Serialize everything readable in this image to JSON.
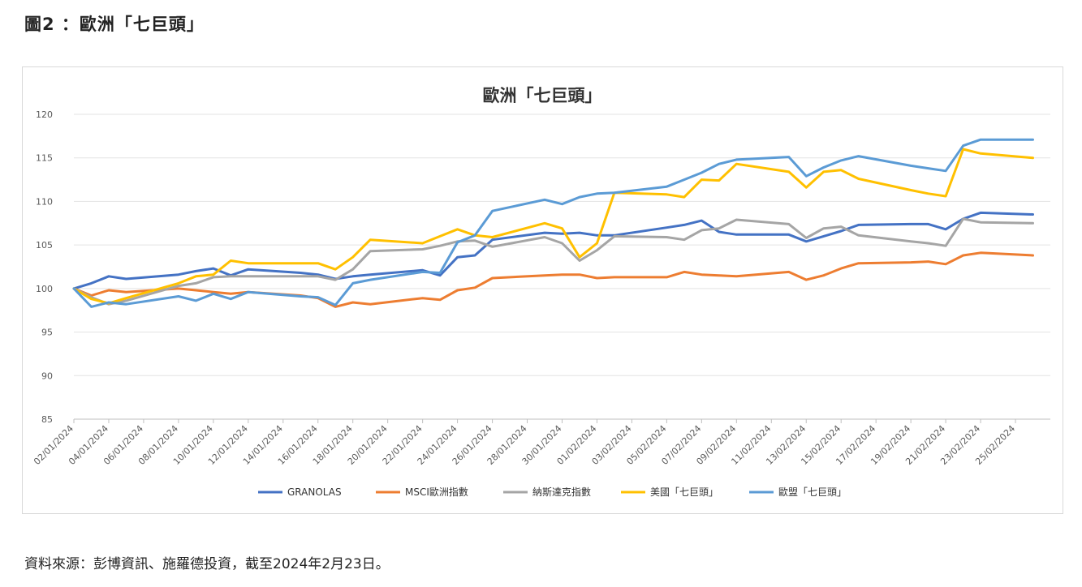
{
  "figure_title": "圖2 ：歐洲「七巨頭」",
  "source_note": "資料來源：彭博資訊、施羅德投資，截至2024年2月23日。",
  "chart_data": {
    "type": "line",
    "title": "歐洲「七巨頭」",
    "ylim": [
      85,
      120
    ],
    "yticks": [
      85,
      90,
      95,
      100,
      105,
      110,
      115,
      120
    ],
    "grid": "horizontal",
    "legend_position": "bottom",
    "x_labels": [
      "02/01/2024",
      "04/01/2024",
      "06/01/2024",
      "08/01/2024",
      "10/01/2024",
      "12/01/2024",
      "14/01/2024",
      "16/01/2024",
      "18/01/2024",
      "20/01/2024",
      "22/01/2024",
      "24/01/2024",
      "26/01/2024",
      "28/01/2024",
      "30/01/2024",
      "01/02/2024",
      "03/02/2024",
      "05/02/2024",
      "07/02/2024",
      "09/02/2024",
      "11/02/2024",
      "13/02/2024",
      "15/02/2024",
      "17/02/2024",
      "19/02/2024",
      "21/02/2024",
      "23/02/2024",
      "25/02/2024"
    ],
    "x": [
      "2024-01-02",
      "2024-01-03",
      "2024-01-04",
      "2024-01-05",
      "2024-01-08",
      "2024-01-09",
      "2024-01-10",
      "2024-01-11",
      "2024-01-12",
      "2024-01-15",
      "2024-01-16",
      "2024-01-17",
      "2024-01-18",
      "2024-01-19",
      "2024-01-22",
      "2024-01-23",
      "2024-01-24",
      "2024-01-25",
      "2024-01-26",
      "2024-01-29",
      "2024-01-30",
      "2024-01-31",
      "2024-02-01",
      "2024-02-02",
      "2024-02-05",
      "2024-02-06",
      "2024-02-07",
      "2024-02-08",
      "2024-02-09",
      "2024-02-12",
      "2024-02-13",
      "2024-02-14",
      "2024-02-15",
      "2024-02-16",
      "2024-02-19",
      "2024-02-20",
      "2024-02-21",
      "2024-02-22",
      "2024-02-23",
      "2024-02-26"
    ],
    "series": [
      {
        "name": "GRANOLAS",
        "color": "#4472C4",
        "values": [
          100,
          100.6,
          101.4,
          101.1,
          101.6,
          102,
          102.3,
          101.5,
          102.2,
          101.8,
          101.6,
          101.1,
          101.4,
          101.6,
          102.1,
          101.5,
          103.6,
          103.8,
          105.6,
          106.4,
          106.3,
          106.4,
          106.1,
          106.1,
          107,
          107.3,
          107.8,
          106.5,
          106.2,
          106.2,
          105.4,
          106,
          106.6,
          107.3,
          107.4,
          107.4,
          106.8,
          108,
          108.7,
          108.5
        ]
      },
      {
        "name": "MSCI歐洲指數",
        "color": "#ED7D31",
        "values": [
          100,
          99.2,
          99.8,
          99.6,
          100,
          99.8,
          99.6,
          99.4,
          99.6,
          99.2,
          98.9,
          97.9,
          98.4,
          98.2,
          98.9,
          98.7,
          99.8,
          100.1,
          101.2,
          101.5,
          101.6,
          101.6,
          101.2,
          101.3,
          101.3,
          101.9,
          101.6,
          101.5,
          101.4,
          101.9,
          101,
          101.5,
          102.3,
          102.9,
          103,
          103.1,
          102.8,
          103.8,
          104.1,
          103.8
        ]
      },
      {
        "name": "納斯達克指數",
        "color": "#A5A5A5",
        "values": [
          100,
          99,
          98.2,
          98.6,
          100.3,
          100.6,
          101.3,
          101.4,
          101.4,
          101.4,
          101.4,
          101,
          102.2,
          104.3,
          104.5,
          104.9,
          105.4,
          105.5,
          104.8,
          105.9,
          105.2,
          103.2,
          104.4,
          106,
          105.9,
          105.6,
          106.7,
          106.9,
          107.9,
          107.4,
          105.8,
          106.9,
          107.1,
          106.1,
          105.4,
          105.2,
          104.9,
          108,
          107.6,
          107.5
        ]
      },
      {
        "name": "美國「七巨頭」",
        "color": "#FFC000",
        "values": [
          100,
          98.8,
          98.3,
          98.9,
          100.6,
          101.4,
          101.6,
          103.2,
          102.9,
          102.9,
          102.9,
          102.2,
          103.6,
          105.6,
          105.2,
          106,
          106.8,
          106.1,
          105.9,
          107.5,
          106.9,
          103.6,
          105.2,
          111,
          110.8,
          110.5,
          112.5,
          112.4,
          114.3,
          113.4,
          111.6,
          113.4,
          113.6,
          112.6,
          111.3,
          110.9,
          110.6,
          116,
          115.5,
          115
        ]
      },
      {
        "name": "歐盟「七巨頭」",
        "color": "#5B9BD5",
        "values": [
          100,
          97.9,
          98.4,
          98.2,
          99.1,
          98.6,
          99.4,
          98.8,
          99.6,
          99.1,
          99,
          98.1,
          100.6,
          101,
          101.9,
          101.8,
          105.3,
          106.1,
          108.9,
          110.2,
          109.7,
          110.5,
          110.9,
          111,
          111.7,
          112.5,
          113.3,
          114.3,
          114.8,
          115.1,
          112.9,
          113.9,
          114.7,
          115.2,
          114.1,
          113.8,
          113.5,
          116.4,
          117.1,
          117.1
        ]
      }
    ]
  }
}
